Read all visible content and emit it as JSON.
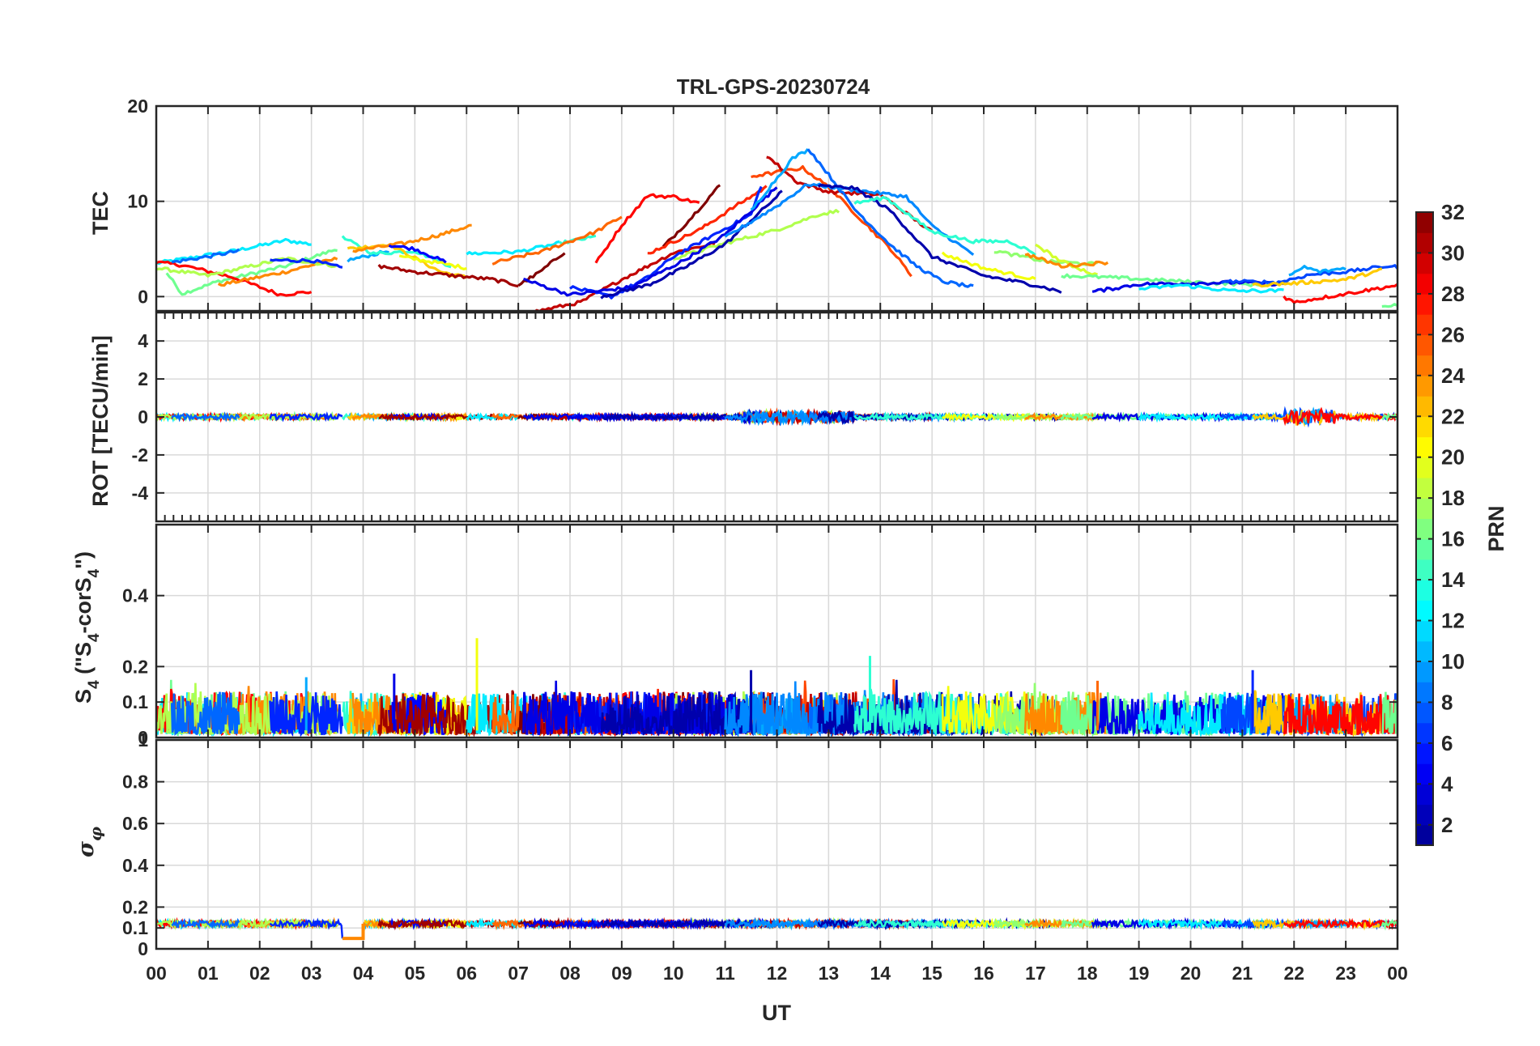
{
  "colors": {
    "axis": "#262626",
    "grid": "#d9d9d9",
    "background": "#ffffff",
    "colormap": [
      "#00008f",
      "#0000ff",
      "#0080ff",
      "#00ffff",
      "#80ff80",
      "#ffff00",
      "#ff8000",
      "#ff0000",
      "#800000"
    ]
  },
  "chart_data": [
    {
      "panel": "tec",
      "type": "line",
      "title": "TRL-GPS-20230724",
      "ylabel": "TEC",
      "ylim": [
        -1.5,
        20
      ],
      "yticks": [
        0,
        10,
        20
      ],
      "series": [
        {
          "prn": 12,
          "points": [
            [
              0,
              3.5
            ],
            [
              1.5,
              4.8
            ],
            [
              2.5,
              5.9
            ],
            [
              3,
              5.5
            ]
          ]
        },
        {
          "prn": 16,
          "points": [
            [
              0.2,
              2.5
            ],
            [
              0.5,
              0.3
            ],
            [
              1.2,
              1.6
            ],
            [
              2.5,
              3.2
            ],
            [
              3.5,
              5
            ]
          ]
        },
        {
          "prn": 28,
          "points": [
            [
              0,
              3.6
            ],
            [
              0.5,
              3.3
            ],
            [
              1.5,
              2
            ],
            [
              2.4,
              0.2
            ],
            [
              3,
              0.5
            ]
          ]
        },
        {
          "prn": 24,
          "points": [
            [
              1.2,
              1.2
            ],
            [
              2.5,
              2.6
            ],
            [
              3.5,
              4
            ]
          ]
        },
        {
          "prn": 18,
          "points": [
            [
              0,
              3
            ],
            [
              1,
              2.2
            ],
            [
              2.5,
              4
            ],
            [
              3.5,
              3.2
            ]
          ]
        },
        {
          "prn": 8,
          "points": [
            [
              0.3,
              3.6
            ],
            [
              1,
              4.2
            ],
            [
              1.6,
              4.8
            ]
          ]
        },
        {
          "prn": 6,
          "points": [
            [
              2.2,
              3.8
            ],
            [
              3,
              3.8
            ],
            [
              3.6,
              3
            ]
          ]
        },
        {
          "prn": 10,
          "points": [
            [
              3.7,
              3.8
            ],
            [
              4.5,
              4.8
            ]
          ]
        },
        {
          "prn": 14,
          "points": [
            [
              3.6,
              6.2
            ],
            [
              4.2,
              4.5
            ],
            [
              5,
              4.8
            ],
            [
              5.7,
              3.2
            ]
          ]
        },
        {
          "prn": 22,
          "points": [
            [
              3.7,
              5
            ],
            [
              4.5,
              5.5
            ],
            [
              5.5,
              2.6
            ],
            [
              6,
              2
            ]
          ]
        },
        {
          "prn": 24,
          "points": [
            [
              3.8,
              4.8
            ],
            [
              4.8,
              5.6
            ],
            [
              5.5,
              6.5
            ],
            [
              6.1,
              7.5
            ]
          ]
        },
        {
          "prn": 20,
          "points": [
            [
              4.7,
              4.2
            ],
            [
              5.5,
              3.5
            ],
            [
              6,
              3
            ]
          ]
        },
        {
          "prn": 5,
          "points": [
            [
              4.5,
              5.4
            ],
            [
              5,
              5
            ],
            [
              5.6,
              3.6
            ]
          ]
        },
        {
          "prn": 31,
          "points": [
            [
              4.3,
              3.2
            ],
            [
              5,
              2.6
            ],
            [
              6.5,
              1.8
            ],
            [
              7,
              1.2
            ]
          ]
        },
        {
          "prn": 12,
          "points": [
            [
              6,
              4.5
            ],
            [
              7,
              4.7
            ],
            [
              7.8,
              5.6
            ]
          ]
        },
        {
          "prn": 14,
          "points": [
            [
              7.8,
              5.6
            ],
            [
              8.5,
              6.3
            ]
          ]
        },
        {
          "prn": 25,
          "points": [
            [
              6.5,
              3.5
            ],
            [
              7.5,
              4.8
            ],
            [
              8.5,
              6.8
            ],
            [
              9,
              8.4
            ]
          ]
        },
        {
          "prn": 32,
          "points": [
            [
              7,
              1.2
            ],
            [
              7.4,
              2.5
            ],
            [
              7.9,
              4.7
            ]
          ]
        },
        {
          "prn": 30,
          "points": [
            [
              7.3,
              -1.6
            ],
            [
              8.2,
              -0.6
            ],
            [
              9,
              1.8
            ],
            [
              10,
              4.6
            ],
            [
              10.8,
              5.6
            ]
          ]
        },
        {
          "prn": 28,
          "points": [
            [
              8.5,
              3.5
            ],
            [
              9,
              7.5
            ],
            [
              9.5,
              10.6
            ],
            [
              10,
              10.5
            ],
            [
              10.5,
              9.8
            ]
          ]
        },
        {
          "prn": 32,
          "points": [
            [
              9.8,
              5.2
            ],
            [
              10.3,
              8
            ],
            [
              10.7,
              10.5
            ],
            [
              10.9,
              11.7
            ]
          ]
        },
        {
          "prn": 27,
          "points": [
            [
              9.5,
              4.5
            ],
            [
              10.5,
              7
            ],
            [
              11.2,
              9.5
            ],
            [
              11.8,
              11.5
            ]
          ]
        },
        {
          "prn": 18,
          "points": [
            [
              10,
              4
            ],
            [
              11,
              5.6
            ],
            [
              12,
              7
            ],
            [
              12.8,
              8.6
            ],
            [
              13.2,
              9
            ]
          ]
        },
        {
          "prn": 6,
          "points": [
            [
              8,
              1
            ],
            [
              8.8,
              0
            ],
            [
              9.5,
              2
            ],
            [
              10,
              4.2
            ],
            [
              11.5,
              8.6
            ],
            [
              11.7,
              11.7
            ]
          ]
        },
        {
          "prn": 4,
          "points": [
            [
              7.1,
              1.8
            ],
            [
              8,
              0.2
            ],
            [
              9.2,
              1
            ],
            [
              10.2,
              3.8
            ],
            [
              11,
              6.5
            ],
            [
              12,
              11.5
            ]
          ]
        },
        {
          "prn": 2,
          "points": [
            [
              8.6,
              0
            ],
            [
              9.5,
              1.2
            ],
            [
              10.2,
              3
            ],
            [
              11,
              5.5
            ],
            [
              12.1,
              11
            ]
          ]
        },
        {
          "prn": 26,
          "points": [
            [
              11.5,
              12.6
            ],
            [
              12.5,
              13.5
            ],
            [
              13,
              11.5
            ],
            [
              13.5,
              8.8
            ],
            [
              14.2,
              5
            ],
            [
              14.6,
              2.2
            ]
          ]
        },
        {
          "prn": 30,
          "points": [
            [
              11.8,
              14.8
            ],
            [
              12.4,
              12
            ],
            [
              13,
              11
            ],
            [
              14,
              10.7
            ],
            [
              15,
              6.8
            ]
          ]
        },
        {
          "prn": 10,
          "points": [
            [
              11.5,
              9
            ],
            [
              12.3,
              14.5
            ],
            [
              12.6,
              15.4
            ]
          ]
        },
        {
          "prn": 8,
          "points": [
            [
              12.6,
              15.6
            ],
            [
              13,
              12.8
            ],
            [
              13.5,
              9.2
            ],
            [
              14.2,
              5.4
            ],
            [
              14.7,
              3.2
            ],
            [
              15.2,
              1.6
            ],
            [
              15.8,
              1
            ]
          ]
        },
        {
          "prn": 9,
          "points": [
            [
              11,
              6.2
            ],
            [
              12,
              9.5
            ],
            [
              12.6,
              11.8
            ],
            [
              13.5,
              11.2
            ],
            [
              14.5,
              10.5
            ],
            [
              15,
              7.4
            ],
            [
              15.8,
              4.4
            ]
          ]
        },
        {
          "prn": 2,
          "points": [
            [
              12.8,
              11.6
            ],
            [
              13.5,
              11.4
            ],
            [
              14.2,
              9
            ],
            [
              15,
              4.2
            ],
            [
              16,
              2.2
            ],
            [
              17,
              1.2
            ],
            [
              17.5,
              0.5
            ]
          ]
        },
        {
          "prn": 14,
          "points": [
            [
              13.5,
              9.8
            ],
            [
              14.1,
              10.4
            ],
            [
              15,
              6.8
            ],
            [
              15.8,
              5.8
            ],
            [
              16.5,
              5.8
            ],
            [
              17,
              4.5
            ]
          ]
        },
        {
          "prn": 20,
          "points": [
            [
              15.2,
              4.5
            ],
            [
              16,
              3
            ],
            [
              17,
              1.8
            ]
          ]
        },
        {
          "prn": 17,
          "points": [
            [
              16.2,
              4.8
            ],
            [
              17.2,
              3.7
            ],
            [
              18.2,
              3.4
            ]
          ]
        },
        {
          "prn": 19,
          "points": [
            [
              17,
              5.5
            ],
            [
              17.5,
              3.7
            ],
            [
              18.2,
              2.2
            ]
          ]
        },
        {
          "prn": 24,
          "points": [
            [
              16.8,
              4.5
            ],
            [
              17.5,
              3.2
            ],
            [
              18.4,
              3.6
            ]
          ]
        },
        {
          "prn": 16,
          "points": [
            [
              17.5,
              2.2
            ],
            [
              18.5,
              2
            ],
            [
              19.5,
              1.7
            ],
            [
              20.5,
              1.4
            ],
            [
              21.5,
              1.2
            ]
          ]
        },
        {
          "prn": 4,
          "points": [
            [
              18.1,
              0.5
            ],
            [
              19,
              1.3
            ],
            [
              20,
              1.4
            ],
            [
              21,
              1.5
            ],
            [
              21.8,
              1.3
            ]
          ]
        },
        {
          "prn": 12,
          "points": [
            [
              19,
              0.8
            ],
            [
              19.8,
              1.2
            ],
            [
              20.8,
              0.6
            ],
            [
              21.8,
              0.6
            ]
          ]
        },
        {
          "prn": 7,
          "points": [
            [
              20.6,
              1.6
            ],
            [
              21.7,
              1.5
            ],
            [
              22.3,
              2.3
            ],
            [
              23,
              2.6
            ],
            [
              23.8,
              3.2
            ],
            [
              24,
              3.1
            ]
          ]
        },
        {
          "prn": 22,
          "points": [
            [
              21.2,
              1.2
            ],
            [
              22,
              1.4
            ],
            [
              23,
              1.8
            ],
            [
              23.7,
              2.8
            ]
          ]
        },
        {
          "prn": 10,
          "points": [
            [
              21.9,
              2.2
            ],
            [
              22.2,
              3.1
            ],
            [
              22.5,
              2.6
            ],
            [
              23,
              3
            ]
          ]
        },
        {
          "prn": 28,
          "points": [
            [
              21.8,
              0
            ],
            [
              22,
              -0.6
            ],
            [
              23,
              0.3
            ],
            [
              24,
              1.2
            ]
          ]
        },
        {
          "prn": 16,
          "points": [
            [
              23.7,
              -1.2
            ],
            [
              24,
              -0.8
            ]
          ]
        }
      ]
    },
    {
      "panel": "rot",
      "type": "line",
      "ylabel": "ROT [TECU/min]",
      "ylim": [
        -5.5,
        5.5
      ],
      "yticks": [
        -4,
        -2,
        0,
        2,
        4
      ]
    },
    {
      "panel": "s4",
      "type": "line",
      "ylabel": "S4 (\"S4-corS4\")",
      "ylim": [
        0,
        0.6
      ],
      "yticks": [
        0,
        0.1,
        0.2,
        0.4
      ],
      "peaks": [
        [
          6.2,
          0.28
        ],
        [
          13.8,
          0.23
        ],
        [
          2.9,
          0.17
        ],
        [
          4.6,
          0.18
        ],
        [
          21.2,
          0.19
        ],
        [
          11.5,
          0.19
        ],
        [
          18.2,
          0.16
        ]
      ]
    },
    {
      "panel": "sigma",
      "type": "line",
      "ylabel": "σφ",
      "ylim": [
        0,
        1
      ],
      "yticks": [
        0,
        0.1,
        0.2,
        0.4,
        0.6,
        0.8,
        1
      ],
      "baseline": 0.12,
      "dip": {
        "start": 3.6,
        "end": 4.0,
        "value": 0.05
      }
    }
  ],
  "xaxis": {
    "label": "UT",
    "range": [
      0,
      24
    ],
    "ticklabels": [
      "00",
      "01",
      "02",
      "03",
      "04",
      "05",
      "06",
      "07",
      "08",
      "09",
      "10",
      "11",
      "12",
      "13",
      "14",
      "15",
      "16",
      "17",
      "18",
      "19",
      "20",
      "21",
      "22",
      "23",
      "00"
    ]
  },
  "colorbar": {
    "label": "PRN",
    "range": [
      1,
      32
    ],
    "ticks": [
      2,
      4,
      6,
      8,
      10,
      12,
      14,
      16,
      18,
      20,
      22,
      24,
      26,
      28,
      30,
      32
    ]
  },
  "labels": {
    "s4_main": "S",
    "s4_sub": "4",
    "s4_mid": " (\"S",
    "s4_mid_sub": "4",
    "s4_tail": "-corS",
    "s4_tail_sub": "4",
    "s4_end": "\")",
    "sigma_main": "σ",
    "sigma_sub": "φ"
  }
}
